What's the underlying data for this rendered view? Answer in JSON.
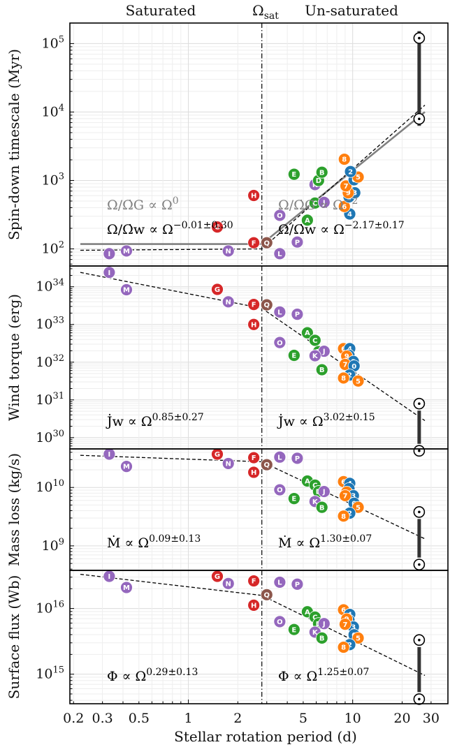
{
  "figure": {
    "header_left": "Saturated",
    "header_mid": "Ωsat",
    "header_right": "Un-saturated",
    "xlabel": "Stellar rotation period (d)",
    "x_ticks": [
      "0.2",
      "0.3",
      "0.5",
      "1",
      "2",
      "5",
      "10",
      "20",
      "30"
    ],
    "omega_sat_period": 2.8,
    "sun_period": 25.4
  },
  "colors": {
    "red": "#d62728",
    "purple": "#9467bd",
    "brown": "#8c564b",
    "green": "#2ca02c",
    "blue": "#1f77b4",
    "orange": "#ff7f0e",
    "fit": "#000000",
    "theory": "#808080",
    "sun_bar": "#333333"
  },
  "chart_data": [
    {
      "type": "scatter",
      "id": "spindown",
      "ylabel": "Spin-down timescale (Myr)",
      "y_log_range": [
        5.3,
        1.75
      ],
      "y_inverted": true,
      "y_ticks": [
        {
          "exp": 2,
          "label": "10",
          "sup": "2"
        },
        {
          "exp": 3,
          "label": "10",
          "sup": "3"
        },
        {
          "exp": 4,
          "label": "10",
          "sup": "4"
        },
        {
          "exp": 5,
          "label": "10",
          "sup": "5"
        }
      ],
      "ann_left_gray": "Ω/Ω̇G ∝ Ω^0",
      "ann_left_black": "Ω/Ω̇w ∝ Ω^−0.01±0.30",
      "ann_right_gray": "Ω/Ω̇G ∝ Ω^−2",
      "ann_right_black": "Ω/Ω̇w ∝ Ω^−2.17±0.17",
      "sun_logs": [
        3.9,
        5.08
      ],
      "fit_dashed": [
        [
          0.22,
          1.98
        ],
        [
          2.8,
          2.0
        ],
        [
          27.5,
          4.1
        ]
      ],
      "fit_theory": [
        [
          0.22,
          2.07
        ],
        [
          2.8,
          2.07
        ],
        [
          27.5,
          4.0
        ]
      ],
      "points": [
        {
          "label": "I",
          "p": 0.33,
          "y": 1.93,
          "c": "purple"
        },
        {
          "label": "M",
          "p": 0.42,
          "y": 1.97,
          "c": "purple"
        },
        {
          "label": "N",
          "p": 1.75,
          "y": 1.97,
          "c": "purple"
        },
        {
          "label": "G",
          "p": 1.5,
          "y": 2.32,
          "c": "red"
        },
        {
          "label": "F",
          "p": 2.5,
          "y": 2.09,
          "c": "red"
        },
        {
          "label": "H",
          "p": 2.5,
          "y": 2.78,
          "c": "red"
        },
        {
          "label": "Q",
          "p": 3.0,
          "y": 2.09,
          "c": "brown"
        },
        {
          "label": "L",
          "p": 3.6,
          "y": 1.93,
          "c": "purple"
        },
        {
          "label": "P",
          "p": 4.6,
          "y": 2.1,
          "c": "purple"
        },
        {
          "label": "O",
          "p": 3.6,
          "y": 2.49,
          "c": "purple"
        },
        {
          "label": "A",
          "p": 5.3,
          "y": 2.42,
          "c": "green"
        },
        {
          "label": "C",
          "p": 5.9,
          "y": 2.67,
          "c": "green"
        },
        {
          "label": "J",
          "p": 6.7,
          "y": 2.68,
          "c": "purple"
        },
        {
          "label": "K",
          "p": 5.9,
          "y": 2.94,
          "c": "purple"
        },
        {
          "label": "D",
          "p": 6.2,
          "y": 3.0,
          "c": "green"
        },
        {
          "label": "E",
          "p": 4.4,
          "y": 3.09,
          "c": "green"
        },
        {
          "label": "B",
          "p": 6.5,
          "y": 3.12,
          "c": "green"
        },
        {
          "label": "4",
          "p": 9.6,
          "y": 2.51,
          "c": "blue"
        },
        {
          "label": "6",
          "p": 8.9,
          "y": 2.62,
          "c": "orange"
        },
        {
          "label": "1",
          "p": 9.5,
          "y": 2.76,
          "c": "blue"
        },
        {
          "label": "3",
          "p": 10.3,
          "y": 2.82,
          "c": "blue"
        },
        {
          "label": "9",
          "p": 9.4,
          "y": 2.82,
          "c": "orange"
        },
        {
          "label": "7",
          "p": 9.1,
          "y": 2.92,
          "c": "orange"
        },
        {
          "label": "0",
          "p": 10.2,
          "y": 3.01,
          "c": "blue"
        },
        {
          "label": "5",
          "p": 10.8,
          "y": 3.05,
          "c": "orange"
        },
        {
          "label": "2",
          "p": 9.7,
          "y": 3.13,
          "c": "blue"
        },
        {
          "label": "8",
          "p": 8.9,
          "y": 3.31,
          "c": "orange"
        }
      ]
    },
    {
      "type": "scatter",
      "id": "torque",
      "ylabel": "Wind torque (erg)",
      "y_log_range": [
        34.55,
        29.7
      ],
      "y_inverted": false,
      "y_ticks": [
        {
          "exp": 34,
          "label": "10",
          "sup": "34"
        },
        {
          "exp": 33,
          "label": "10",
          "sup": "33"
        },
        {
          "exp": 32,
          "label": "10",
          "sup": "32"
        },
        {
          "exp": 31,
          "label": "10",
          "sup": "31"
        },
        {
          "exp": 30,
          "label": "10",
          "sup": "30"
        }
      ],
      "ann_left_gray": "",
      "ann_left_black": "J̇w ∝ Ω^0.85±0.27",
      "ann_right_gray": "",
      "ann_right_black": "J̇w ∝ Ω^3.02±0.15",
      "sun_logs": [
        30.9,
        29.65
      ],
      "fit_dashed": [
        [
          0.22,
          34.38
        ],
        [
          2.8,
          33.43
        ],
        [
          27.5,
          30.45
        ]
      ],
      "fit_theory": [],
      "points": [
        {
          "label": "I",
          "p": 0.33,
          "y": 34.38,
          "c": "purple"
        },
        {
          "label": "M",
          "p": 0.42,
          "y": 33.92,
          "c": "purple"
        },
        {
          "label": "G",
          "p": 1.5,
          "y": 33.93,
          "c": "red"
        },
        {
          "label": "N",
          "p": 1.75,
          "y": 33.6,
          "c": "purple"
        },
        {
          "label": "F",
          "p": 2.5,
          "y": 33.53,
          "c": "red"
        },
        {
          "label": "Q",
          "p": 3.0,
          "y": 33.52,
          "c": "brown"
        },
        {
          "label": "H",
          "p": 2.5,
          "y": 33.0,
          "c": "red"
        },
        {
          "label": "L",
          "p": 3.6,
          "y": 33.33,
          "c": "purple"
        },
        {
          "label": "P",
          "p": 4.6,
          "y": 33.27,
          "c": "purple"
        },
        {
          "label": "A",
          "p": 5.3,
          "y": 32.78,
          "c": "green"
        },
        {
          "label": "C",
          "p": 5.9,
          "y": 32.58,
          "c": "green"
        },
        {
          "label": "O",
          "p": 3.6,
          "y": 32.52,
          "c": "purple"
        },
        {
          "label": "D",
          "p": 6.2,
          "y": 32.28,
          "c": "green"
        },
        {
          "label": "J",
          "p": 6.7,
          "y": 32.29,
          "c": "purple"
        },
        {
          "label": "K",
          "p": 5.9,
          "y": 32.17,
          "c": "purple"
        },
        {
          "label": "E",
          "p": 4.4,
          "y": 32.18,
          "c": "green"
        },
        {
          "label": "B",
          "p": 6.5,
          "y": 31.8,
          "c": "green"
        },
        {
          "label": "6",
          "p": 8.8,
          "y": 32.36,
          "c": "orange"
        },
        {
          "label": "4",
          "p": 9.6,
          "y": 32.36,
          "c": "blue"
        },
        {
          "label": "1",
          "p": 9.5,
          "y": 32.18,
          "c": "blue"
        },
        {
          "label": "9",
          "p": 9.2,
          "y": 32.16,
          "c": "orange"
        },
        {
          "label": "3",
          "p": 10.1,
          "y": 32.02,
          "c": "blue"
        },
        {
          "label": "7",
          "p": 9.0,
          "y": 31.94,
          "c": "orange"
        },
        {
          "label": "0",
          "p": 10.2,
          "y": 31.9,
          "c": "blue"
        },
        {
          "label": "2",
          "p": 9.6,
          "y": 31.66,
          "c": "blue"
        },
        {
          "label": "8",
          "p": 8.8,
          "y": 31.58,
          "c": "orange"
        },
        {
          "label": "5",
          "p": 10.8,
          "y": 31.5,
          "c": "orange"
        }
      ]
    },
    {
      "type": "scatter",
      "id": "massloss",
      "ylabel": "Mass loss (kg/s)",
      "y_log_range": [
        10.66,
        8.58
      ],
      "y_inverted": false,
      "y_ticks": [
        {
          "exp": 10,
          "label": "10",
          "sup": "10"
        },
        {
          "exp": 9,
          "label": "10",
          "sup": "9"
        }
      ],
      "ann_left_gray": "",
      "ann_left_black": "Ṁ ∝ Ω^0.09±0.13",
      "ann_right_gray": "",
      "ann_right_black": "Ṁ ∝ Ω^1.30±0.07",
      "sun_logs": [
        9.58,
        8.68
      ],
      "fit_dashed": [
        [
          0.22,
          10.55
        ],
        [
          2.8,
          10.44
        ],
        [
          27.5,
          9.12
        ]
      ],
      "fit_theory": [],
      "points": [
        {
          "label": "I",
          "p": 0.33,
          "y": 10.57,
          "c": "purple"
        },
        {
          "label": "M",
          "p": 0.42,
          "y": 10.36,
          "c": "purple"
        },
        {
          "label": "G",
          "p": 1.5,
          "y": 10.57,
          "c": "red"
        },
        {
          "label": "N",
          "p": 1.75,
          "y": 10.41,
          "c": "purple"
        },
        {
          "label": "F",
          "p": 2.5,
          "y": 10.51,
          "c": "red"
        },
        {
          "label": "H",
          "p": 2.5,
          "y": 10.26,
          "c": "red"
        },
        {
          "label": "Q",
          "p": 3.0,
          "y": 10.39,
          "c": "brown"
        },
        {
          "label": "L",
          "p": 3.6,
          "y": 10.52,
          "c": "purple"
        },
        {
          "label": "P",
          "p": 4.6,
          "y": 10.5,
          "c": "purple"
        },
        {
          "label": "O",
          "p": 3.6,
          "y": 9.96,
          "c": "purple"
        },
        {
          "label": "A",
          "p": 5.3,
          "y": 10.11,
          "c": "green"
        },
        {
          "label": "C",
          "p": 5.9,
          "y": 10.04,
          "c": "green"
        },
        {
          "label": "E",
          "p": 4.4,
          "y": 9.81,
          "c": "green"
        },
        {
          "label": "D",
          "p": 6.2,
          "y": 9.93,
          "c": "green"
        },
        {
          "label": "J",
          "p": 6.7,
          "y": 9.93,
          "c": "purple"
        },
        {
          "label": "K",
          "p": 5.9,
          "y": 9.76,
          "c": "purple"
        },
        {
          "label": "B",
          "p": 6.5,
          "y": 9.66,
          "c": "green"
        },
        {
          "label": "6",
          "p": 8.8,
          "y": 10.1,
          "c": "orange"
        },
        {
          "label": "4",
          "p": 9.6,
          "y": 10.07,
          "c": "blue"
        },
        {
          "label": "1",
          "p": 9.5,
          "y": 9.98,
          "c": "blue"
        },
        {
          "label": "9",
          "p": 9.2,
          "y": 9.92,
          "c": "orange"
        },
        {
          "label": "3",
          "p": 10.1,
          "y": 9.86,
          "c": "blue"
        },
        {
          "label": "7",
          "p": 9.0,
          "y": 9.86,
          "c": "orange"
        },
        {
          "label": "0",
          "p": 10.2,
          "y": 9.73,
          "c": "blue"
        },
        {
          "label": "5",
          "p": 10.8,
          "y": 9.66,
          "c": "orange"
        },
        {
          "label": "2",
          "p": 9.6,
          "y": 9.56,
          "c": "blue"
        },
        {
          "label": "8",
          "p": 8.8,
          "y": 9.51,
          "c": "orange"
        }
      ]
    },
    {
      "type": "scatter",
      "id": "flux",
      "ylabel": "Surface flux (Wb)",
      "y_log_range": [
        16.58,
        14.55
      ],
      "y_inverted": false,
      "y_ticks": [
        {
          "exp": 16,
          "label": "10",
          "sup": "16"
        },
        {
          "exp": 15,
          "label": "10",
          "sup": "15"
        }
      ],
      "ann_left_gray": "",
      "ann_left_black": "Φ ∝ Ω^0.29±0.13",
      "ann_right_gray": "",
      "ann_right_black": "Φ ∝ Ω^1.25±0.07",
      "sun_logs": [
        15.52,
        14.62
      ],
      "fit_dashed": [
        [
          0.22,
          16.52
        ],
        [
          2.8,
          16.2
        ],
        [
          27.5,
          14.98
        ]
      ],
      "fit_theory": [],
      "points": [
        {
          "label": "I",
          "p": 0.33,
          "y": 16.49,
          "c": "purple"
        },
        {
          "label": "M",
          "p": 0.42,
          "y": 16.32,
          "c": "purple"
        },
        {
          "label": "G",
          "p": 1.5,
          "y": 16.49,
          "c": "red"
        },
        {
          "label": "N",
          "p": 1.75,
          "y": 16.38,
          "c": "purple"
        },
        {
          "label": "F",
          "p": 2.5,
          "y": 16.42,
          "c": "red"
        },
        {
          "label": "H",
          "p": 2.5,
          "y": 16.05,
          "c": "red"
        },
        {
          "label": "Q",
          "p": 3.0,
          "y": 16.21,
          "c": "brown"
        },
        {
          "label": "L",
          "p": 3.6,
          "y": 16.4,
          "c": "purple"
        },
        {
          "label": "P",
          "p": 4.6,
          "y": 16.37,
          "c": "purple"
        },
        {
          "label": "O",
          "p": 3.6,
          "y": 15.8,
          "c": "purple"
        },
        {
          "label": "A",
          "p": 5.3,
          "y": 15.95,
          "c": "green"
        },
        {
          "label": "C",
          "p": 5.9,
          "y": 15.87,
          "c": "green"
        },
        {
          "label": "E",
          "p": 4.4,
          "y": 15.68,
          "c": "green"
        },
        {
          "label": "D",
          "p": 6.2,
          "y": 15.77,
          "c": "green"
        },
        {
          "label": "J",
          "p": 6.7,
          "y": 15.77,
          "c": "purple"
        },
        {
          "label": "K",
          "p": 5.9,
          "y": 15.64,
          "c": "purple"
        },
        {
          "label": "B",
          "p": 6.5,
          "y": 15.55,
          "c": "green"
        },
        {
          "label": "6",
          "p": 8.8,
          "y": 15.98,
          "c": "orange"
        },
        {
          "label": "4",
          "p": 9.6,
          "y": 15.91,
          "c": "blue"
        },
        {
          "label": "1",
          "p": 9.5,
          "y": 15.82,
          "c": "blue"
        },
        {
          "label": "9",
          "p": 9.2,
          "y": 15.84,
          "c": "orange"
        },
        {
          "label": "3",
          "p": 10.1,
          "y": 15.72,
          "c": "blue"
        },
        {
          "label": "7",
          "p": 9.0,
          "y": 15.76,
          "c": "orange"
        },
        {
          "label": "0",
          "p": 10.2,
          "y": 15.6,
          "c": "blue"
        },
        {
          "label": "5",
          "p": 10.8,
          "y": 15.55,
          "c": "orange"
        },
        {
          "label": "2",
          "p": 9.6,
          "y": 15.45,
          "c": "blue"
        },
        {
          "label": "8",
          "p": 8.8,
          "y": 15.41,
          "c": "orange"
        }
      ]
    }
  ]
}
